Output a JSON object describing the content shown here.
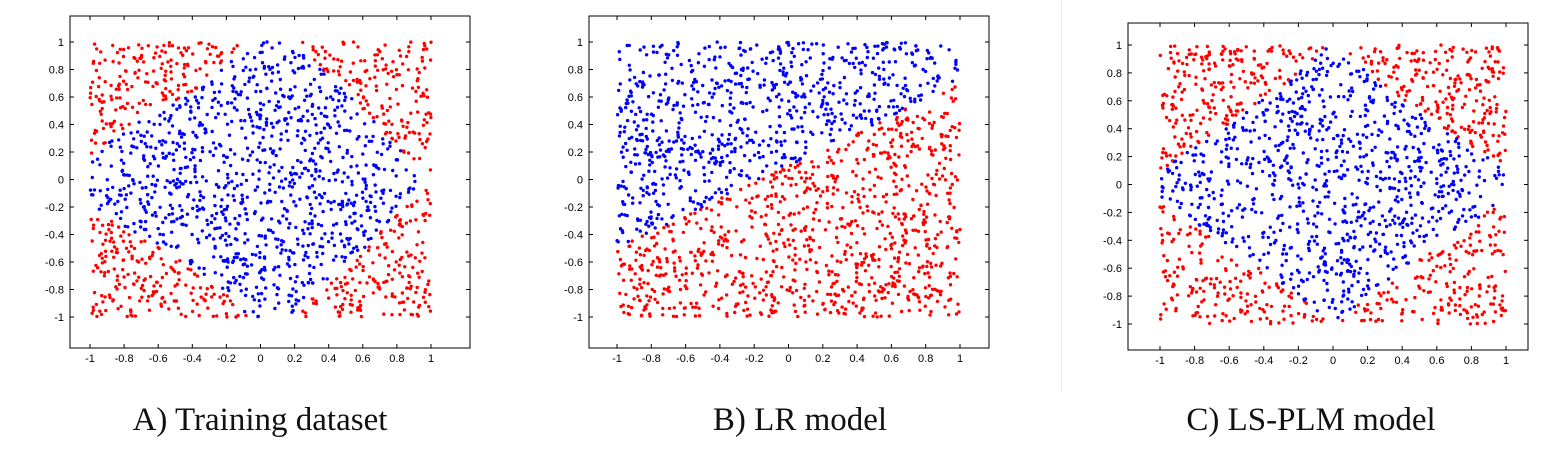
{
  "colors": {
    "class_positive": "#ff0000",
    "class_negative": "#0000ff",
    "axis": "#000000"
  },
  "chart_data": [
    {
      "type": "scatter",
      "caption": "A) Training dataset",
      "decision_rule": "diamond |x|+|y|<1.1 → blue, otherwise red",
      "xlim": [
        -1,
        1
      ],
      "ylim": [
        -1,
        1
      ],
      "x_ticks": [
        -1,
        -0.8,
        -0.6,
        -0.4,
        -0.2,
        0,
        0.2,
        0.4,
        0.6,
        0.8,
        1
      ],
      "y_ticks": [
        1,
        0.8,
        0.6,
        0.4,
        0.2,
        0,
        -0.2,
        -0.4,
        -0.6,
        -0.8,
        -1
      ],
      "series": [
        {
          "color": "#0000ff"
        },
        {
          "color": "#ff0000"
        }
      ],
      "grid": false
    },
    {
      "type": "scatter",
      "caption": "B) LR model",
      "decision_rule": "linear boundary y > 0.6x + 0.1 → blue, otherwise red",
      "xlim": [
        -1,
        1
      ],
      "ylim": [
        -1,
        1
      ],
      "x_ticks": [
        -1,
        -0.8,
        -0.6,
        -0.4,
        -0.2,
        0,
        0.2,
        0.4,
        0.6,
        0.8,
        1
      ],
      "y_ticks": [
        1,
        0.8,
        0.6,
        0.4,
        0.2,
        0,
        -0.2,
        -0.4,
        -0.6,
        -0.8,
        -1
      ],
      "series": [
        {
          "color": "#0000ff"
        },
        {
          "color": "#ff0000"
        }
      ],
      "grid": false
    },
    {
      "type": "scatter",
      "caption": "C) LS-PLM model",
      "decision_rule": "approximate diamond |x|+|y|<1.05 → blue, otherwise red",
      "xlim": [
        -1,
        1
      ],
      "ylim": [
        -1,
        1
      ],
      "x_ticks": [
        -1,
        -0.8,
        -0.6,
        -0.4,
        -0.2,
        0,
        0.2,
        0.4,
        0.6,
        0.8,
        1
      ],
      "y_ticks": [
        1,
        0.8,
        0.6,
        0.4,
        0.2,
        0,
        -0.2,
        -0.4,
        -0.6,
        -0.8,
        -1
      ],
      "series": [
        {
          "color": "#0000ff"
        },
        {
          "color": "#ff0000"
        }
      ],
      "grid": false
    }
  ]
}
